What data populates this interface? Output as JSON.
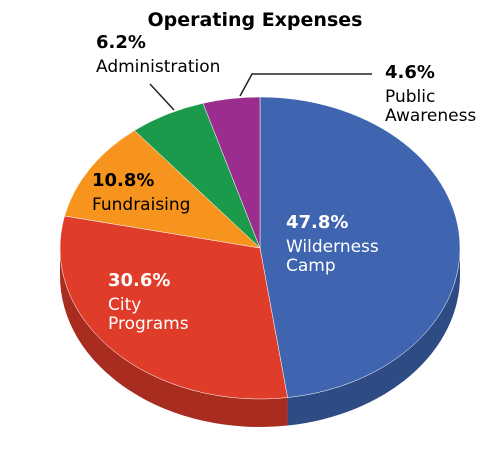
{
  "chart_data": {
    "type": "pie",
    "title": "Operating Expenses",
    "categories": [
      "Wilderness Camp",
      "City Programs",
      "Fundraising",
      "Administration",
      "Public Awareness"
    ],
    "values": [
      47.8,
      30.6,
      10.8,
      6.2,
      4.6
    ],
    "value_labels": [
      "47.8%",
      "30.6%",
      "10.8%",
      "6.2%",
      "4.6%"
    ],
    "colors": [
      "#3f64b0",
      "#e03c2a",
      "#f7941d",
      "#1b9a4b",
      "#9b2d8f"
    ]
  }
}
